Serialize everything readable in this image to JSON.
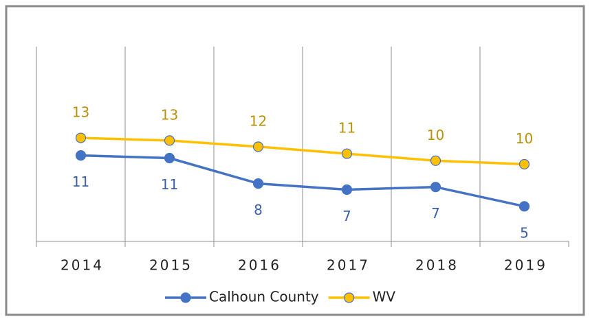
{
  "chart_data": {
    "type": "line",
    "categories": [
      "2014",
      "2015",
      "2016",
      "2017",
      "2018",
      "2019"
    ],
    "series": [
      {
        "name": "Calhoun County",
        "color": "#4472c4",
        "label_color": "#3a5fa8",
        "values": [
          11.0,
          10.7,
          7.8,
          7.1,
          7.4,
          5.2
        ],
        "value_labels": [
          "11",
          "11",
          "8",
          "7",
          "7",
          "5"
        ]
      },
      {
        "name": "WV",
        "color": "#ffc000",
        "label_color": "#b8900a",
        "values": [
          13.0,
          12.7,
          12.0,
          11.2,
          10.4,
          10.0
        ],
        "value_labels": [
          "13",
          "13",
          "12",
          "11",
          "10",
          "10"
        ]
      }
    ],
    "ylim": [
      1.2,
      23.4
    ],
    "grid": true,
    "legend": "bottom"
  }
}
